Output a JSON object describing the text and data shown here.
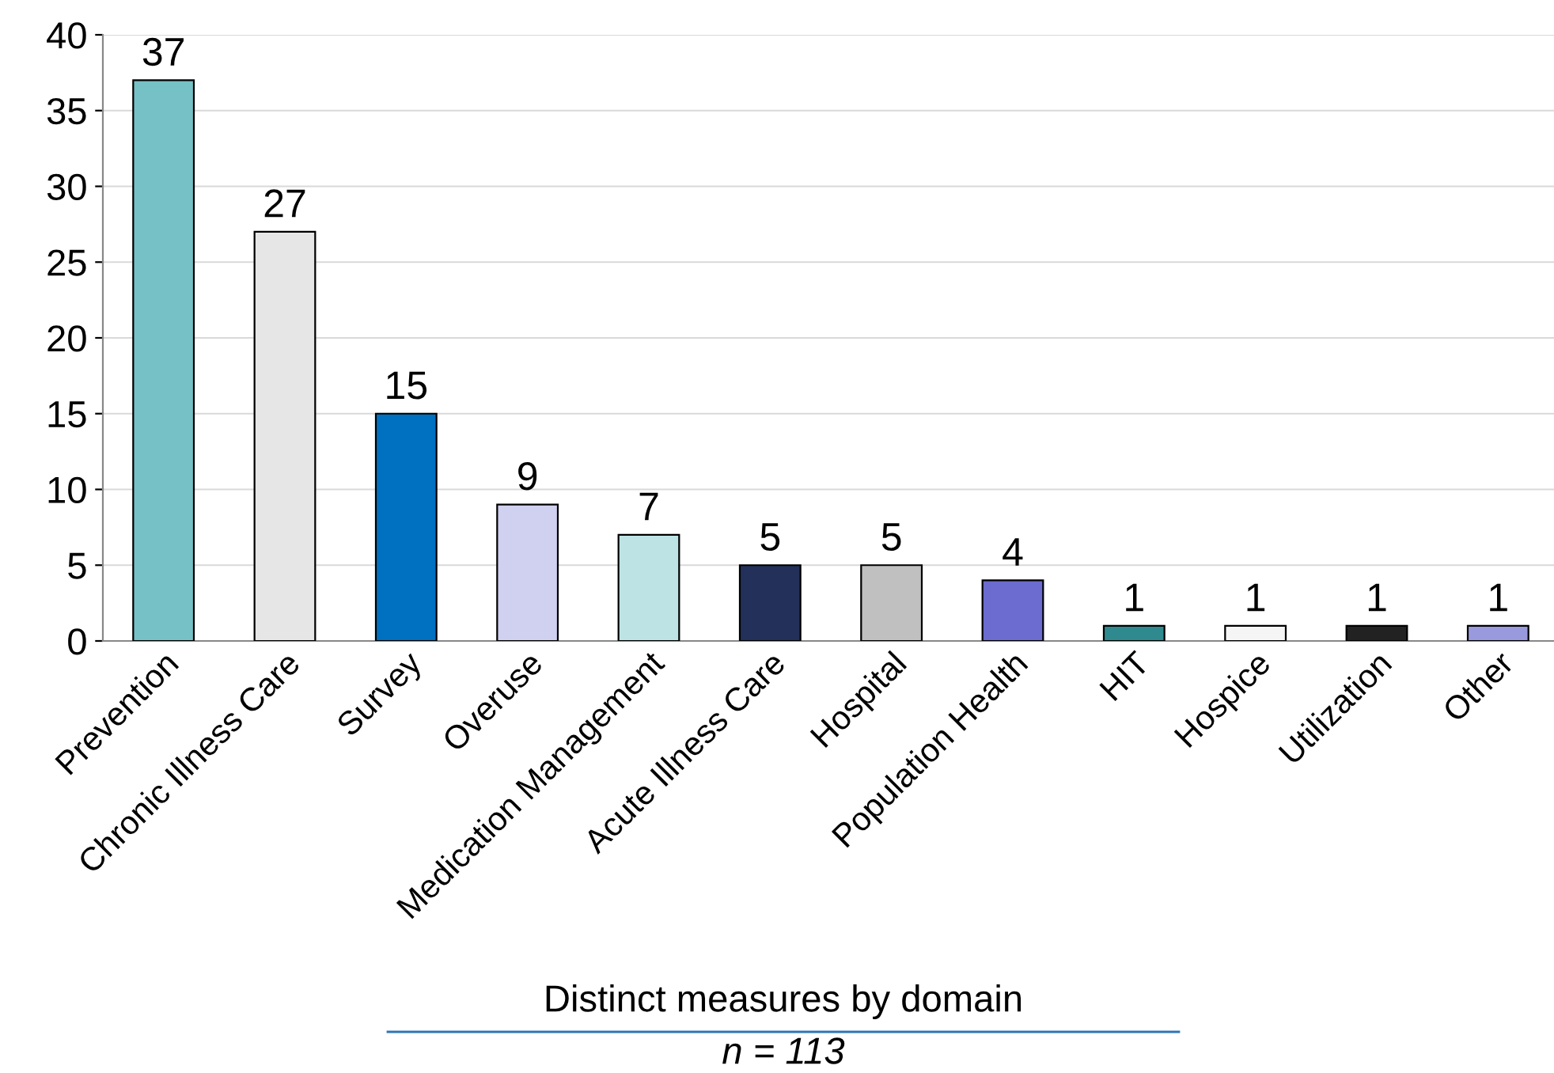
{
  "chart_data": {
    "type": "bar",
    "xlabel": "Distinct measures by domain",
    "annotations": [
      "n = 113"
    ],
    "categories": [
      "Prevention",
      "Chronic Illness Care",
      "Survey",
      "Overuse",
      "Medication Management",
      "Acute Illness Care",
      "Hospital",
      "Population Health",
      "HIT",
      "Hospice",
      "Utilization",
      "Other"
    ],
    "values": [
      37,
      27,
      15,
      9,
      7,
      5,
      5,
      4,
      1,
      1,
      1,
      1
    ],
    "colors": [
      "#76c1c6",
      "#e6e6e6",
      "#0070c0",
      "#d0d0f0",
      "#bde3e4",
      "#22305a",
      "#c0c0c0",
      "#6b6bd0",
      "#2e8a8f",
      "#f5f5f5",
      "#222222",
      "#9999dd"
    ],
    "ylim": [
      0,
      40
    ],
    "yticks": [
      0,
      5,
      10,
      15,
      20,
      25,
      30,
      35,
      40
    ],
    "grid": "y",
    "data_labels": true,
    "legend": false
  }
}
